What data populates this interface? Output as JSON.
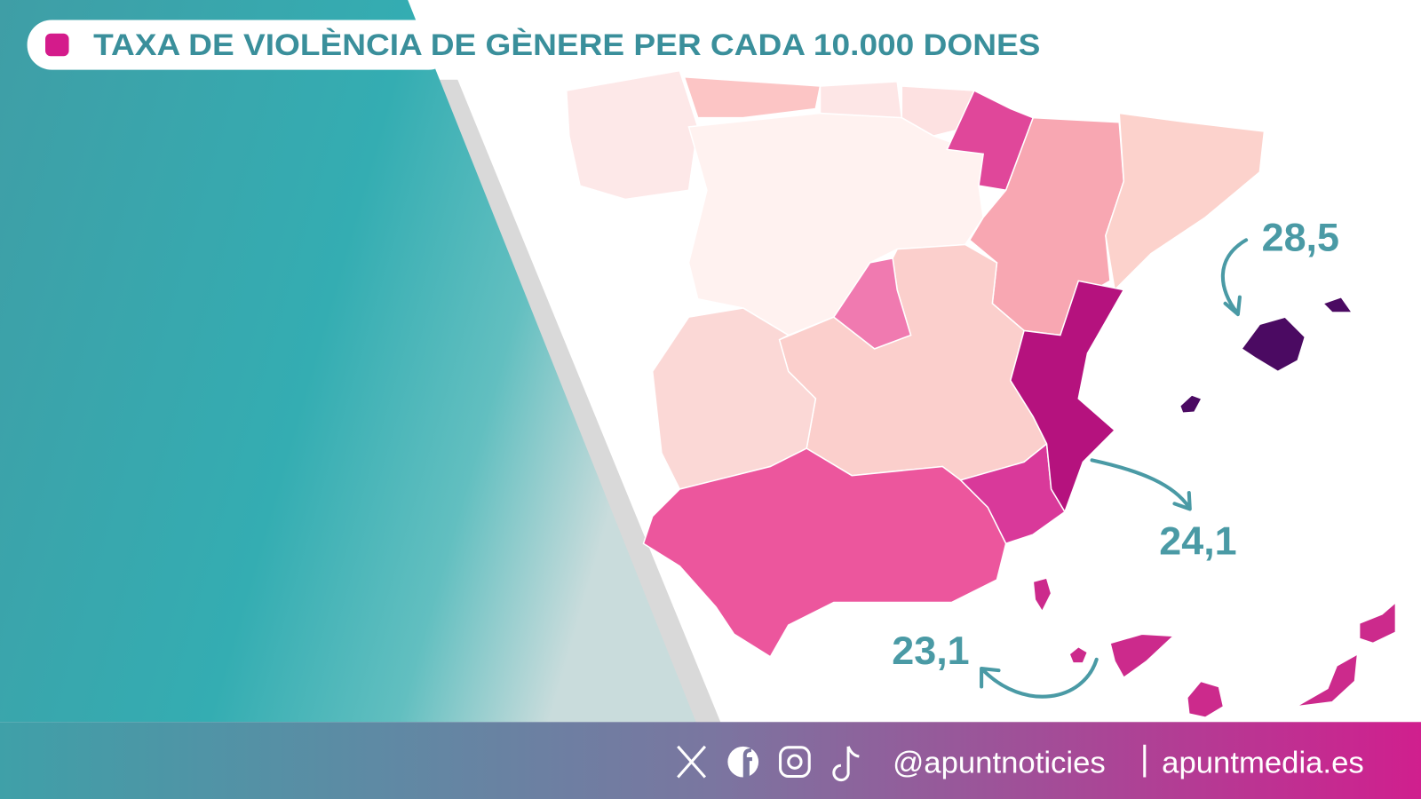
{
  "header": {
    "title": "TAXA DE VIOLÈNCIA DE GÈNERE PER CADA 10.000 DONES"
  },
  "annotations": [
    {
      "label": "28,5"
    },
    {
      "label": "24,1"
    },
    {
      "label": "23,1"
    }
  ],
  "footer": {
    "handle": "@apuntnoticies",
    "website": "apuntmedia.es"
  }
}
